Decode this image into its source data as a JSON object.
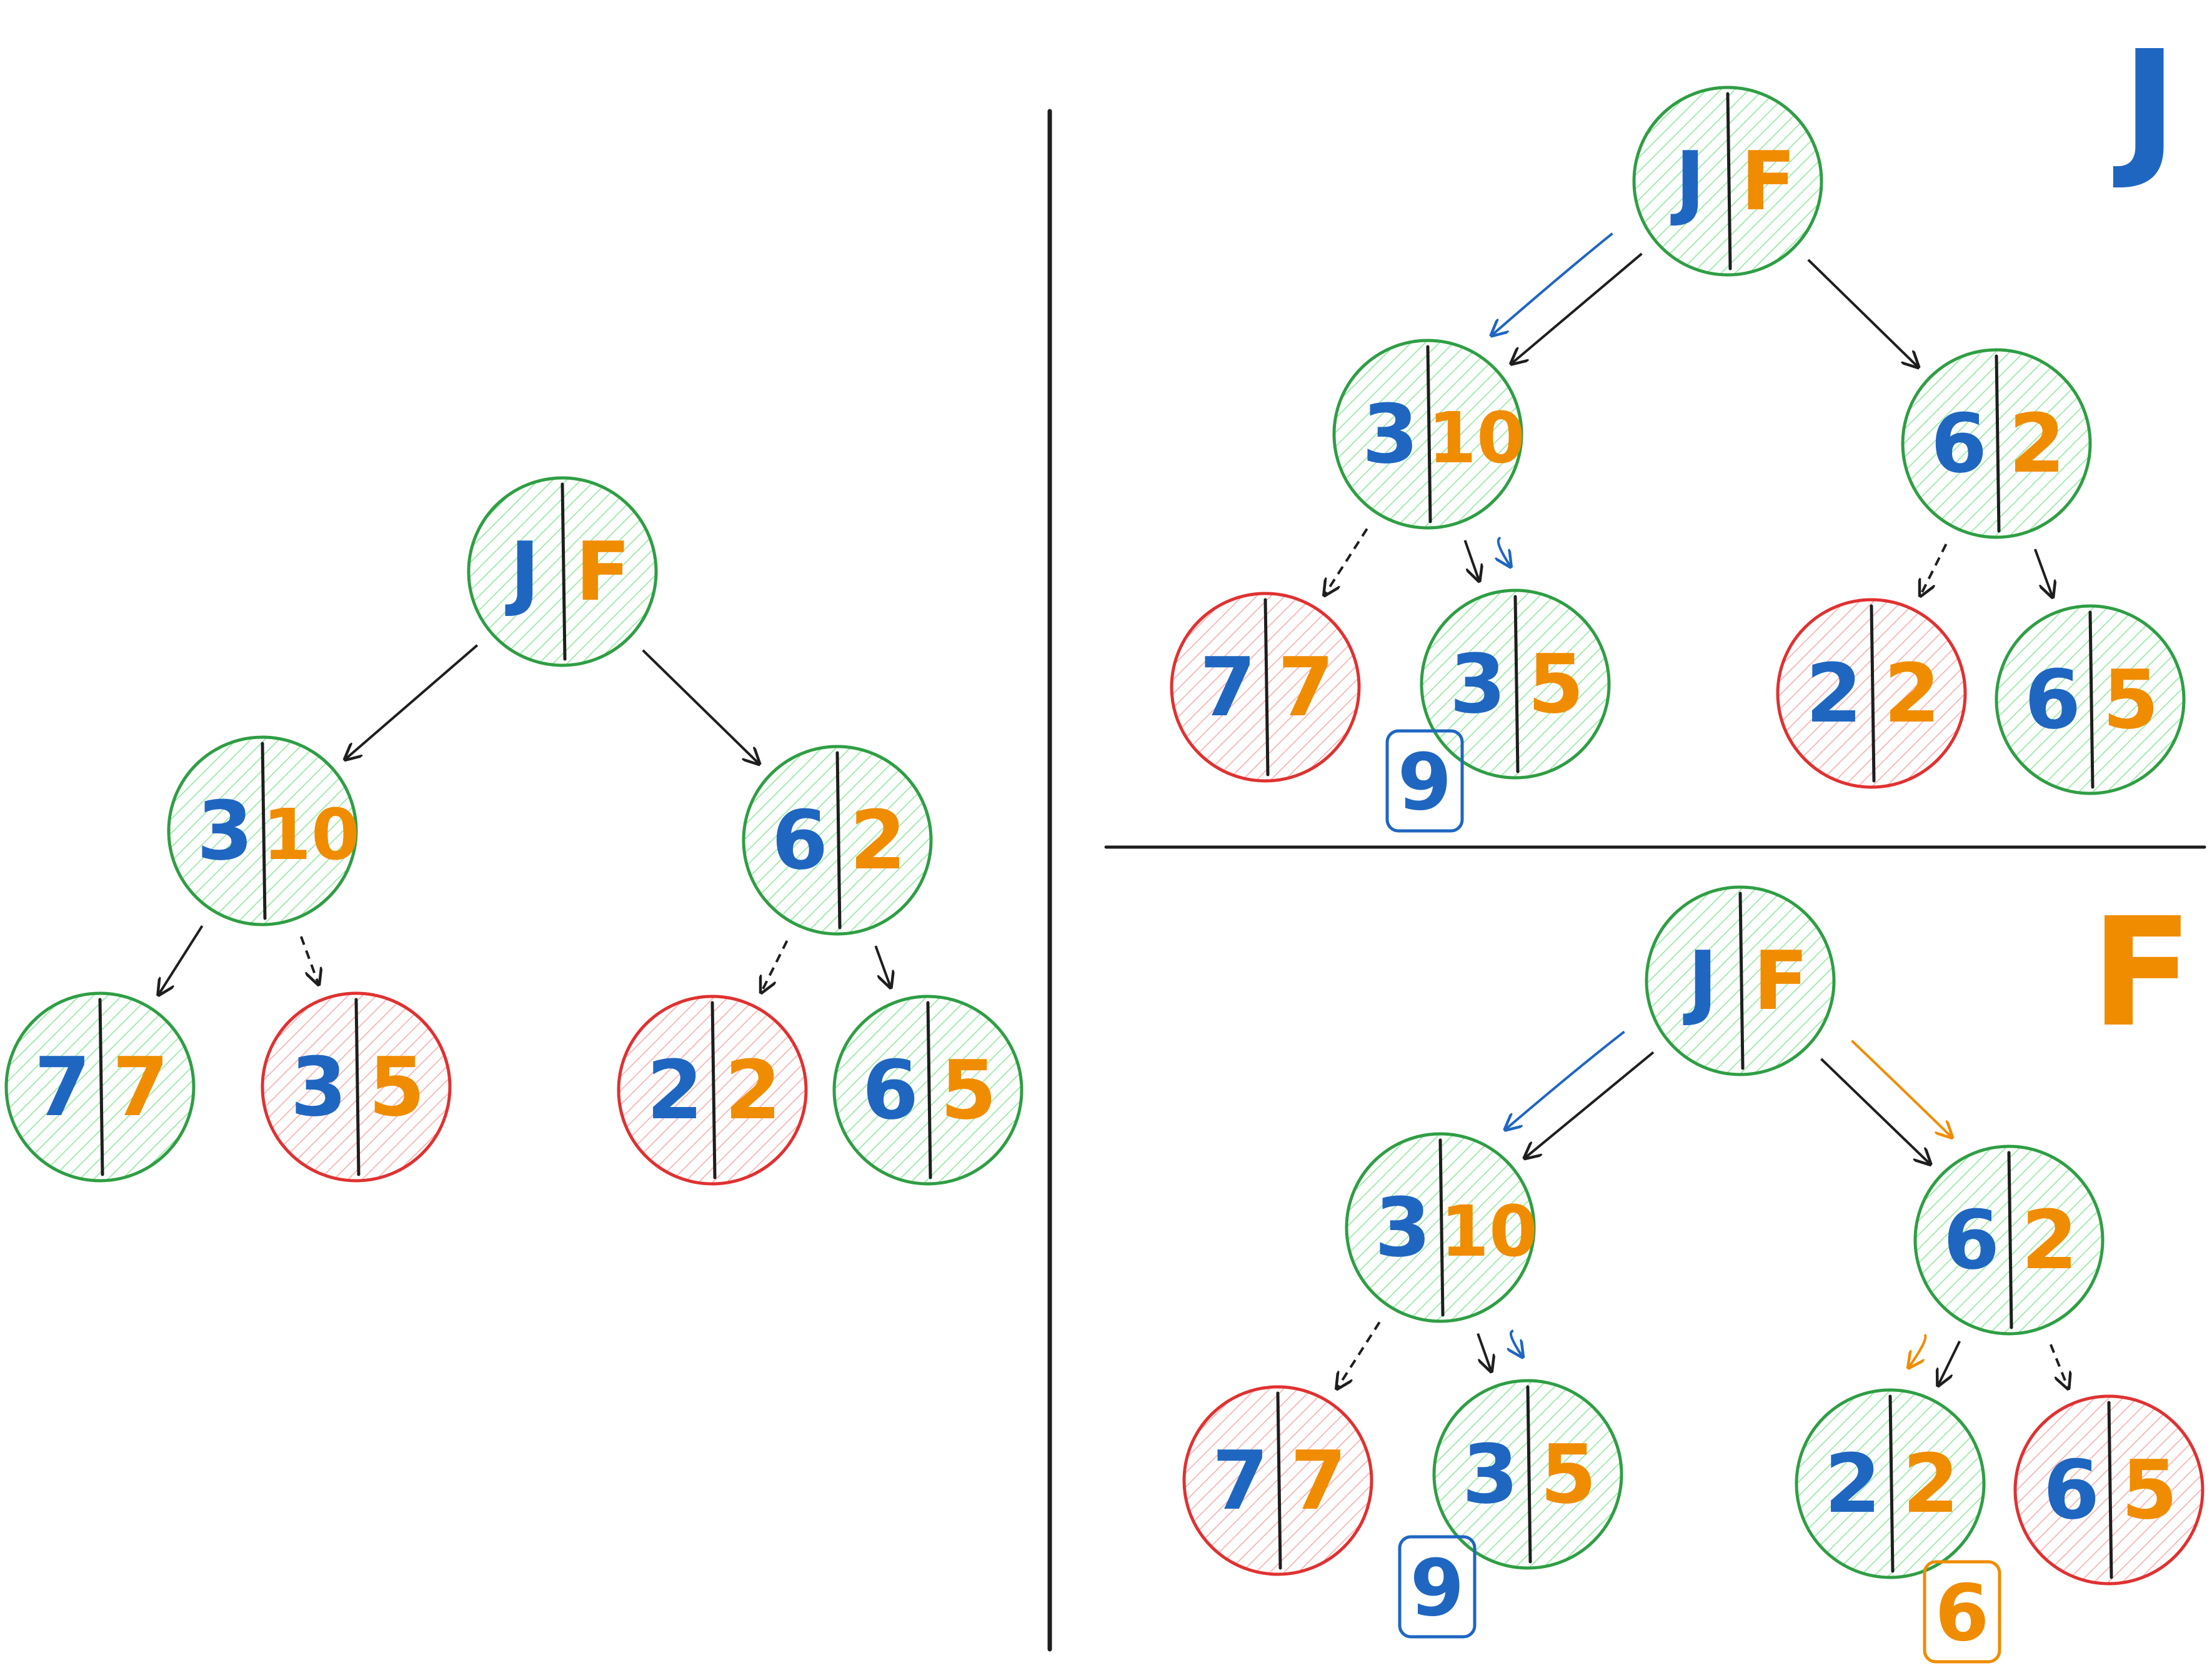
{
  "colors": {
    "left_value": "#1f66c1",
    "right_value": "#f08c00",
    "good_node": "#2f9e44",
    "bad_node": "#e03131",
    "good_fill": "#b2f2bb",
    "bad_fill": "#ffc9c9",
    "edge": "#1e1e1e"
  },
  "panels": [
    {
      "id": "original",
      "heading": "",
      "nodes": [
        {
          "id": "root",
          "left": "J",
          "right": "F",
          "status": "good"
        },
        {
          "id": "a",
          "left": "3",
          "right": "10",
          "status": "good"
        },
        {
          "id": "b",
          "left": "6",
          "right": "2",
          "status": "good"
        },
        {
          "id": "a1",
          "left": "7",
          "right": "7",
          "status": "good"
        },
        {
          "id": "a2",
          "left": "3",
          "right": "5",
          "status": "bad"
        },
        {
          "id": "b1",
          "left": "2",
          "right": "2",
          "status": "bad"
        },
        {
          "id": "b2",
          "left": "6",
          "right": "5",
          "status": "good"
        }
      ],
      "edges": [
        {
          "from": "root",
          "to": "a",
          "style": "solid"
        },
        {
          "from": "root",
          "to": "b",
          "style": "solid"
        },
        {
          "from": "a",
          "to": "a1",
          "style": "solid"
        },
        {
          "from": "a",
          "to": "a2",
          "style": "dashed"
        },
        {
          "from": "b",
          "to": "b1",
          "style": "dashed"
        },
        {
          "from": "b",
          "to": "b2",
          "style": "solid"
        }
      ],
      "path": [],
      "result": null
    },
    {
      "id": "j-turn",
      "heading": "J",
      "nodes": [
        {
          "id": "root",
          "left": "J",
          "right": "F",
          "status": "good"
        },
        {
          "id": "a",
          "left": "3",
          "right": "10",
          "status": "good"
        },
        {
          "id": "b",
          "left": "6",
          "right": "2",
          "status": "good"
        },
        {
          "id": "a1",
          "left": "7",
          "right": "7",
          "status": "bad"
        },
        {
          "id": "a2",
          "left": "3",
          "right": "5",
          "status": "good"
        },
        {
          "id": "b1",
          "left": "2",
          "right": "2",
          "status": "bad"
        },
        {
          "id": "b2",
          "left": "6",
          "right": "5",
          "status": "good"
        }
      ],
      "edges": [
        {
          "from": "root",
          "to": "a",
          "style": "solid"
        },
        {
          "from": "root",
          "to": "b",
          "style": "solid"
        },
        {
          "from": "a",
          "to": "a1",
          "style": "dashed"
        },
        {
          "from": "a",
          "to": "a2",
          "style": "solid"
        },
        {
          "from": "b",
          "to": "b1",
          "style": "dashed"
        },
        {
          "from": "b",
          "to": "b2",
          "style": "solid"
        }
      ],
      "path": [
        {
          "from": "root",
          "to": "a",
          "color": "left"
        },
        {
          "from": "a",
          "to": "a2",
          "color": "left"
        }
      ],
      "result": {
        "value": "9",
        "color": "left",
        "node": "a2"
      }
    },
    {
      "id": "f-turn",
      "heading": "F",
      "nodes": [
        {
          "id": "root",
          "left": "J",
          "right": "F",
          "status": "good"
        },
        {
          "id": "a",
          "left": "3",
          "right": "10",
          "status": "good"
        },
        {
          "id": "b",
          "left": "6",
          "right": "2",
          "status": "good"
        },
        {
          "id": "a1",
          "left": "7",
          "right": "7",
          "status": "bad"
        },
        {
          "id": "a2",
          "left": "3",
          "right": "5",
          "status": "good"
        },
        {
          "id": "b1",
          "left": "2",
          "right": "2",
          "status": "good"
        },
        {
          "id": "b2",
          "left": "6",
          "right": "5",
          "status": "bad"
        }
      ],
      "edges": [
        {
          "from": "root",
          "to": "a",
          "style": "solid"
        },
        {
          "from": "root",
          "to": "b",
          "style": "solid"
        },
        {
          "from": "a",
          "to": "a1",
          "style": "dashed"
        },
        {
          "from": "a",
          "to": "a2",
          "style": "solid"
        },
        {
          "from": "b",
          "to": "b1",
          "style": "solid"
        },
        {
          "from": "b",
          "to": "b2",
          "style": "dashed"
        }
      ],
      "path": [
        {
          "from": "root",
          "to": "a",
          "color": "left"
        },
        {
          "from": "a",
          "to": "a2",
          "color": "left"
        },
        {
          "from": "root",
          "to": "b",
          "color": "right"
        },
        {
          "from": "b",
          "to": "b1",
          "color": "right"
        }
      ],
      "results": [
        {
          "value": "9",
          "color": "left",
          "node": "a2"
        },
        {
          "value": "6",
          "color": "right",
          "node": "b1"
        }
      ]
    }
  ]
}
